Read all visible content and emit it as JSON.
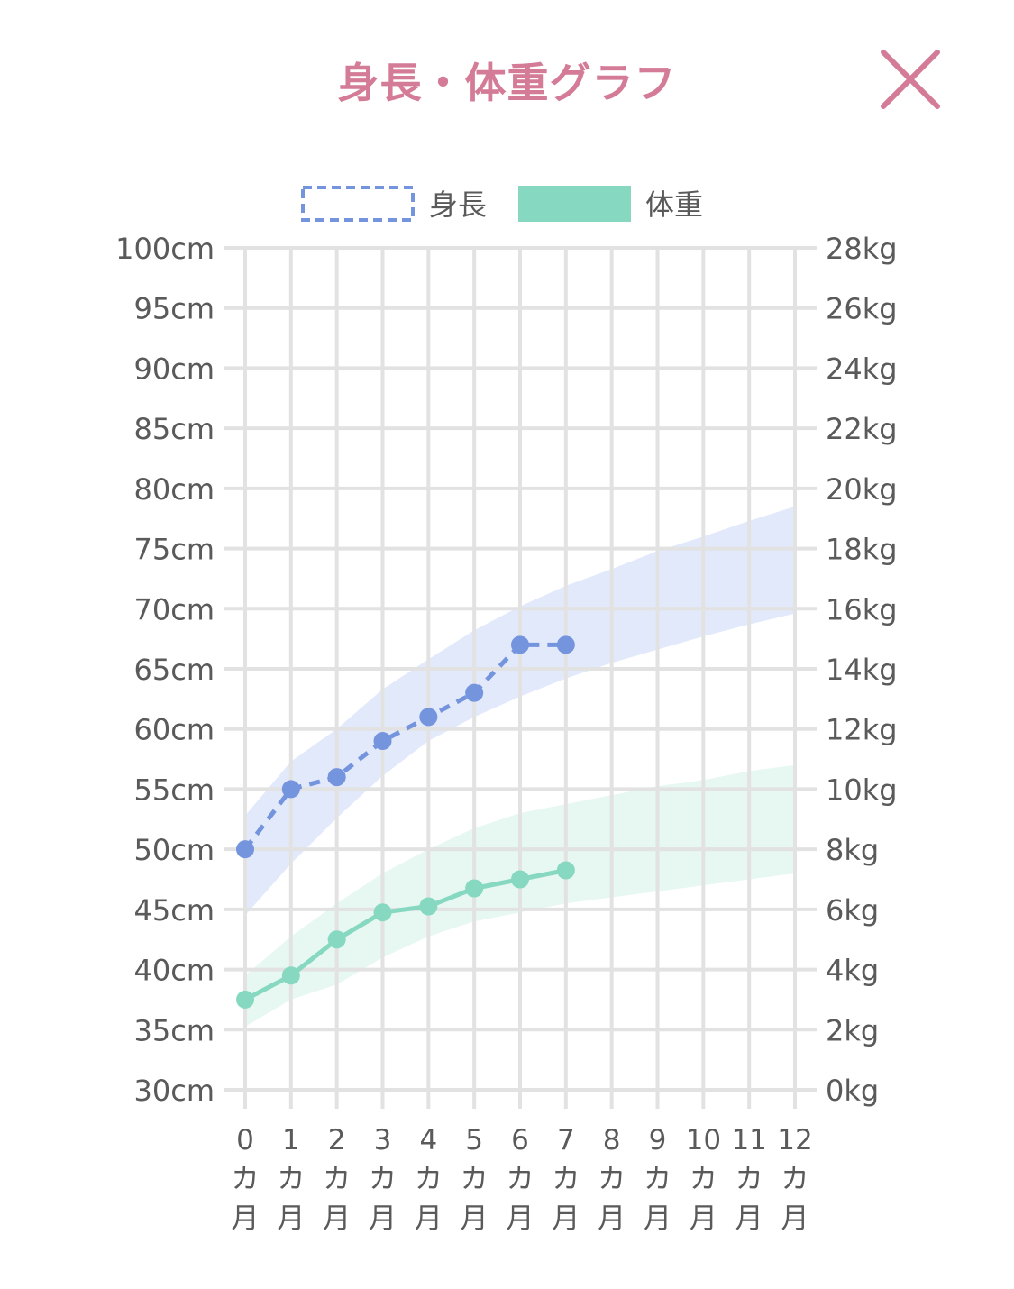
{
  "header": {
    "title": "身長・体重グラフ",
    "close_icon": "close-icon"
  },
  "colors": {
    "title": "#d47b97",
    "height_series": "#7494de",
    "weight_series": "#86d9c0",
    "height_band": "#dde5fa",
    "weight_band": "#e3f6ef",
    "grid": "#e2e2e2",
    "tick_text": "#5a5a5a"
  },
  "chart_data": {
    "type": "line",
    "title": "",
    "legend": {
      "placement": "top-center",
      "items": [
        {
          "label": "身長",
          "style": "dashed-outline",
          "color": "#7494de"
        },
        {
          "label": "体重",
          "style": "filled",
          "color": "#86d9c0"
        }
      ]
    },
    "x": {
      "categories": [
        {
          "num": "0",
          "unit1": "カ",
          "unit2": "月"
        },
        {
          "num": "1",
          "unit1": "カ",
          "unit2": "月"
        },
        {
          "num": "2",
          "unit1": "カ",
          "unit2": "月"
        },
        {
          "num": "3",
          "unit1": "カ",
          "unit2": "月"
        },
        {
          "num": "4",
          "unit1": "カ",
          "unit2": "月"
        },
        {
          "num": "5",
          "unit1": "カ",
          "unit2": "月"
        },
        {
          "num": "6",
          "unit1": "カ",
          "unit2": "月"
        },
        {
          "num": "7",
          "unit1": "カ",
          "unit2": "月"
        },
        {
          "num": "8",
          "unit1": "カ",
          "unit2": "月"
        },
        {
          "num": "9",
          "unit1": "カ",
          "unit2": "月"
        },
        {
          "num": "10",
          "unit1": "カ",
          "unit2": "月"
        },
        {
          "num": "11",
          "unit1": "カ",
          "unit2": "月"
        },
        {
          "num": "12",
          "unit1": "カ",
          "unit2": "月"
        }
      ]
    },
    "y_left": {
      "unit": "cm",
      "range": [
        30,
        100
      ],
      "ticks": [
        "100cm",
        "95cm",
        "90cm",
        "85cm",
        "80cm",
        "75cm",
        "70cm",
        "65cm",
        "60cm",
        "55cm",
        "50cm",
        "45cm",
        "40cm",
        "35cm",
        "30cm"
      ],
      "tick_values": [
        100,
        95,
        90,
        85,
        80,
        75,
        70,
        65,
        60,
        55,
        50,
        45,
        40,
        35,
        30
      ]
    },
    "y_right": {
      "unit": "kg",
      "range": [
        0,
        28
      ],
      "ticks": [
        "28kg",
        "26kg",
        "24kg",
        "22kg",
        "20kg",
        "18kg",
        "16kg",
        "14kg",
        "12kg",
        "10kg",
        "8kg",
        "6kg",
        "4kg",
        "2kg",
        "0kg"
      ],
      "tick_values": [
        28,
        26,
        24,
        22,
        20,
        18,
        16,
        14,
        12,
        10,
        8,
        6,
        4,
        2,
        0
      ]
    },
    "grid": true,
    "series": [
      {
        "name": "身長",
        "axis": "left",
        "style": "dashed",
        "x": [
          0,
          1,
          2,
          3,
          4,
          5,
          6,
          7
        ],
        "values": [
          50,
          55,
          56,
          59,
          61,
          63,
          67,
          67
        ]
      },
      {
        "name": "体重",
        "axis": "right",
        "style": "solid",
        "x": [
          0,
          1,
          2,
          3,
          4,
          5,
          6,
          7
        ],
        "values": [
          3.0,
          3.8,
          5.0,
          5.9,
          6.1,
          6.7,
          7.0,
          7.3
        ]
      }
    ],
    "bands": [
      {
        "series": "身長",
        "axis": "left",
        "x": [
          0,
          1,
          2,
          3,
          4,
          5,
          6,
          7,
          8,
          9,
          10,
          11,
          12
        ],
        "lower": [
          44.5,
          48.8,
          52.6,
          56.1,
          59.0,
          61.0,
          62.7,
          64.2,
          65.5,
          66.6,
          67.7,
          68.7,
          69.6
        ],
        "upper": [
          52.8,
          57.3,
          60.0,
          63.3,
          65.8,
          68.2,
          70.2,
          71.9,
          73.3,
          74.8,
          76.0,
          77.3,
          78.5
        ]
      },
      {
        "series": "体重",
        "axis": "right",
        "x": [
          0,
          1,
          2,
          3,
          4,
          5,
          6,
          7,
          8,
          9,
          10,
          11,
          12
        ],
        "lower": [
          2.1,
          3.0,
          3.5,
          4.4,
          5.1,
          5.6,
          5.9,
          6.2,
          6.4,
          6.6,
          6.8,
          7.0,
          7.2
        ],
        "upper": [
          3.8,
          5.1,
          6.2,
          7.2,
          8.0,
          8.7,
          9.2,
          9.5,
          9.8,
          10.1,
          10.3,
          10.6,
          10.8
        ]
      }
    ]
  }
}
